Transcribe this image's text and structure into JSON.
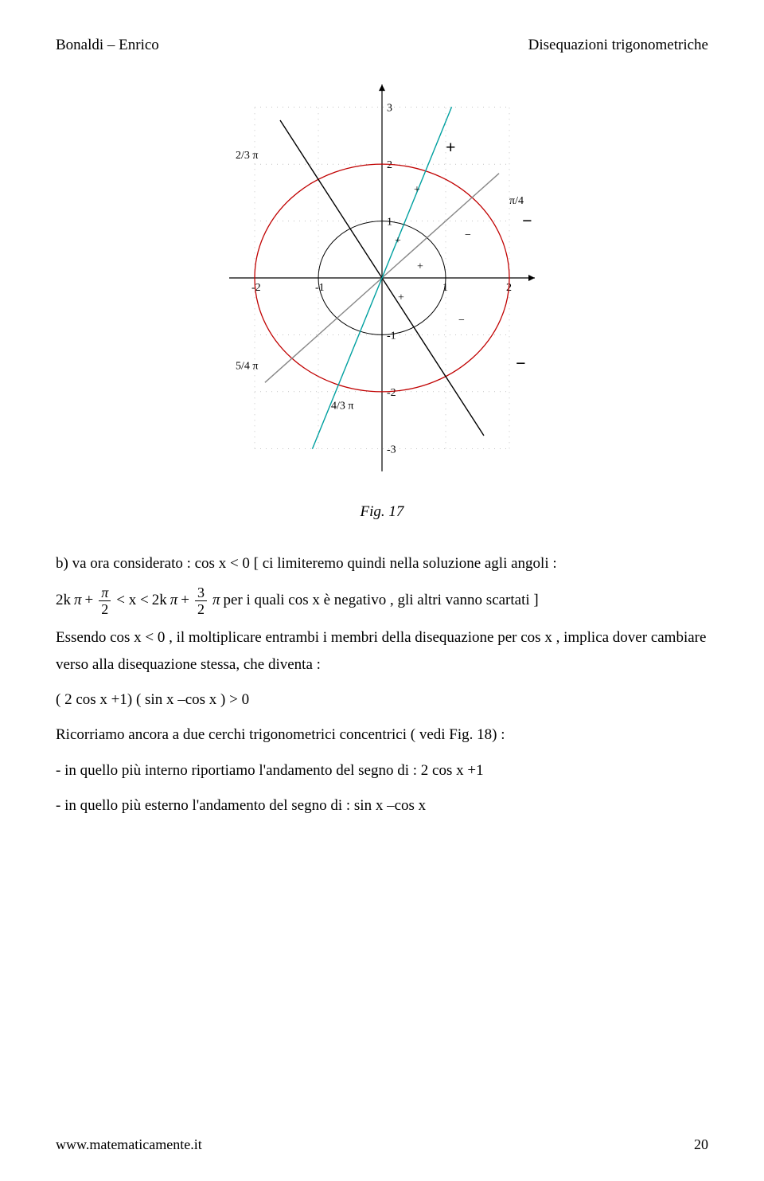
{
  "header": {
    "left": "Bonaldi – Enrico",
    "right": "Disequazioni trigonometriche"
  },
  "figure": {
    "caption": "Fig. 17",
    "axis_color": "#000000",
    "outer_circle_color": "#c00000",
    "inner_circle_color": "#000000",
    "line_dark_color": "#000000",
    "line_cyan_color": "#00a0a0",
    "dotted_color": "#888888",
    "region_sign_fontsize": 22,
    "small_sign_fontsize": 14,
    "label_fontsize": 14,
    "background": "#ffffff",
    "xlim": [
      -2.5,
      2.5
    ],
    "ylim": [
      -3.5,
      3.5
    ],
    "outer_radius": 2,
    "inner_radius": 1,
    "xtick_labels": [
      "-2",
      "-1",
      "1",
      "2"
    ],
    "ytick_labels": [
      "-3",
      "-2",
      "-1",
      "1",
      "2",
      "3"
    ],
    "angle_labels": {
      "pi4": "π/4",
      "two3pi": "2/3 π",
      "five4pi": "5/4 π",
      "four3pi": "4/3 π"
    }
  },
  "text": {
    "intro_b": "b) va ora considerato : cos x < 0 [ ci limiteremo quindi nella soluzione agli angoli :",
    "range_pre": "2k",
    "range_plus": "+",
    "range_lt": "< x <",
    "range_pre2": "2k",
    "range_tail": "per i quali cos x è negativo , gli altri vanno scartati ]",
    "para2": "Essendo cos x < 0 , il moltiplicare entrambi i membri della disequazione per cos x , implica dover cambiare verso alla disequazione stessa, che diventa :",
    "ineq": "( 2 cos x +1) ( sin x –cos x ) > 0",
    "para3": "Ricorriamo ancora a due cerchi trigonometrici concentrici ( vedi Fig. 18) :",
    "bullet1": "-  in quello più interno riportiamo l'andamento del segno di : 2 cos x +1",
    "bullet2": "-  in quello più esterno l'andamento del segno di : sin x –cos x",
    "frac1_num": "π",
    "frac1_den": "2",
    "frac2_num": "3",
    "frac2_den": "2",
    "pi": "π"
  },
  "footer": {
    "site": "www.matematicamente.it",
    "page": "20"
  }
}
